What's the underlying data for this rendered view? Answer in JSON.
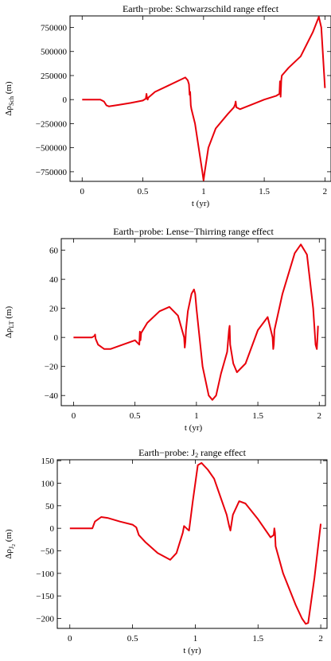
{
  "chart_data": [
    {
      "type": "line",
      "title": "Earth−probe: Schwarzschild  range effect",
      "xlabel": "t (yr)",
      "ylabel_main": "Δρ",
      "ylabel_sub": "Sch",
      "ylabel_unit": "(m)",
      "xlim": [
        -0.1,
        2.05
      ],
      "ylim": [
        -850000,
        870000
      ],
      "xticks": [
        0,
        0.5,
        1,
        1.5,
        2
      ],
      "xtick_labels": [
        "0",
        "0.5",
        "1",
        "1.5",
        "2"
      ],
      "yticks": [
        -750000,
        -500000,
        -250000,
        0,
        250000,
        500000,
        750000
      ],
      "ytick_labels": [
        "−750000",
        "−500000",
        "−250000",
        "0",
        "250000",
        "500000",
        "750000"
      ],
      "line_color": "#e8000b",
      "series": [
        {
          "x": [
            0,
            0.15,
            0.18,
            0.2,
            0.22,
            0.3,
            0.4,
            0.5,
            0.525,
            0.53,
            0.535,
            0.54,
            0.545,
            0.6,
            0.7,
            0.8,
            0.85,
            0.87,
            0.88,
            0.885,
            0.89,
            0.895,
            0.9,
            0.93,
            0.96,
            0.99,
            1.0,
            1.01,
            1.04,
            1.1,
            1.2,
            1.25,
            1.26,
            1.265,
            1.27,
            1.3,
            1.4,
            1.5,
            1.6,
            1.625,
            1.63,
            1.635,
            1.64,
            1.645,
            1.7,
            1.8,
            1.9,
            1.95,
            1.97,
            2.0
          ],
          "y": [
            0,
            0,
            -20000,
            -60000,
            -70000,
            -55000,
            -35000,
            -10000,
            10000,
            60000,
            10000,
            0,
            20000,
            80000,
            140000,
            200000,
            230000,
            200000,
            160000,
            50000,
            80000,
            -60000,
            -100000,
            -250000,
            -500000,
            -750000,
            -840000,
            -750000,
            -500000,
            -300000,
            -150000,
            -80000,
            -50000,
            -20000,
            -80000,
            -100000,
            -50000,
            0,
            40000,
            60000,
            190000,
            30000,
            200000,
            250000,
            330000,
            450000,
            700000,
            860000,
            750000,
            120000
          ]
        }
      ]
    },
    {
      "type": "line",
      "title": "Earth−probe: Lense−Thirring  range effect",
      "xlabel": "t (yr)",
      "ylabel_main": "Δρ",
      "ylabel_sub": "LT",
      "ylabel_unit": "(m)",
      "xlim": [
        -0.1,
        2.05
      ],
      "ylim": [
        -47,
        68
      ],
      "xticks": [
        0,
        0.5,
        1,
        1.5,
        2
      ],
      "xtick_labels": [
        "0",
        "0.5",
        "1",
        "1.5",
        "2"
      ],
      "yticks": [
        -40,
        -20,
        0,
        20,
        40,
        60
      ],
      "ytick_labels": [
        "−40",
        "−20",
        "0",
        "20",
        "40",
        "60"
      ],
      "line_color": "#e8000b",
      "series": [
        {
          "x": [
            0,
            0.15,
            0.17,
            0.175,
            0.18,
            0.2,
            0.25,
            0.3,
            0.4,
            0.5,
            0.535,
            0.54,
            0.545,
            0.55,
            0.6,
            0.7,
            0.78,
            0.85,
            0.9,
            0.905,
            0.91,
            0.915,
            0.93,
            0.96,
            0.98,
            0.99,
            1.0,
            1.05,
            1.1,
            1.13,
            1.16,
            1.2,
            1.25,
            1.265,
            1.27,
            1.275,
            1.3,
            1.33,
            1.4,
            1.5,
            1.58,
            1.62,
            1.625,
            1.63,
            1.635,
            1.7,
            1.8,
            1.85,
            1.9,
            1.95,
            1.97,
            1.98,
            1.985,
            1.99
          ],
          "y": [
            0,
            0,
            1,
            2,
            -1,
            -5,
            -8,
            -8,
            -5,
            -2,
            -5,
            4,
            -2,
            3,
            10,
            18,
            21,
            15,
            0,
            -7,
            -3,
            5,
            18,
            30,
            33,
            30,
            20,
            -20,
            -40,
            -43,
            -40,
            -25,
            -10,
            5,
            8,
            -5,
            -18,
            -24,
            -18,
            5,
            14,
            0,
            -8,
            -5,
            5,
            30,
            58,
            64,
            57,
            20,
            -5,
            -8,
            0,
            8
          ]
        }
      ]
    },
    {
      "type": "line",
      "title": "Earth−probe: J",
      "title_sub": "2",
      "title_tail": "  range effect",
      "xlabel": "t (yr)",
      "ylabel_main": "Δρ",
      "ylabel_sub": "J",
      "ylabel_subsub": "2",
      "ylabel_unit": "(m)",
      "xlim": [
        -0.1,
        2.05
      ],
      "ylim": [
        -222,
        152
      ],
      "xticks": [
        0,
        0.5,
        1,
        1.5,
        2
      ],
      "xtick_labels": [
        "0",
        "0.5",
        "1",
        "1.5",
        "2"
      ],
      "yticks": [
        -200,
        -150,
        -100,
        -50,
        0,
        50,
        100,
        150
      ],
      "ytick_labels": [
        "−200",
        "−150",
        "−100",
        "−50",
        "0",
        "50",
        "100",
        "150"
      ],
      "line_color": "#e8000b",
      "series": [
        {
          "x": [
            0,
            0.18,
            0.2,
            0.25,
            0.3,
            0.4,
            0.5,
            0.53,
            0.55,
            0.6,
            0.7,
            0.8,
            0.85,
            0.9,
            0.91,
            0.93,
            0.95,
            0.98,
            1.02,
            1.05,
            1.1,
            1.15,
            1.2,
            1.25,
            1.27,
            1.28,
            1.3,
            1.35,
            1.4,
            1.5,
            1.6,
            1.625,
            1.63,
            1.635,
            1.64,
            1.7,
            1.8,
            1.85,
            1.88,
            1.9,
            1.95,
            2.0
          ],
          "y": [
            0,
            0,
            15,
            25,
            23,
            15,
            8,
            2,
            -15,
            -30,
            -55,
            -70,
            -55,
            -10,
            5,
            0,
            -5,
            60,
            140,
            145,
            130,
            110,
            70,
            30,
            5,
            -5,
            30,
            60,
            55,
            20,
            -20,
            -15,
            0,
            -10,
            -40,
            -100,
            -170,
            -200,
            -212,
            -210,
            -110,
            10
          ]
        }
      ]
    }
  ]
}
